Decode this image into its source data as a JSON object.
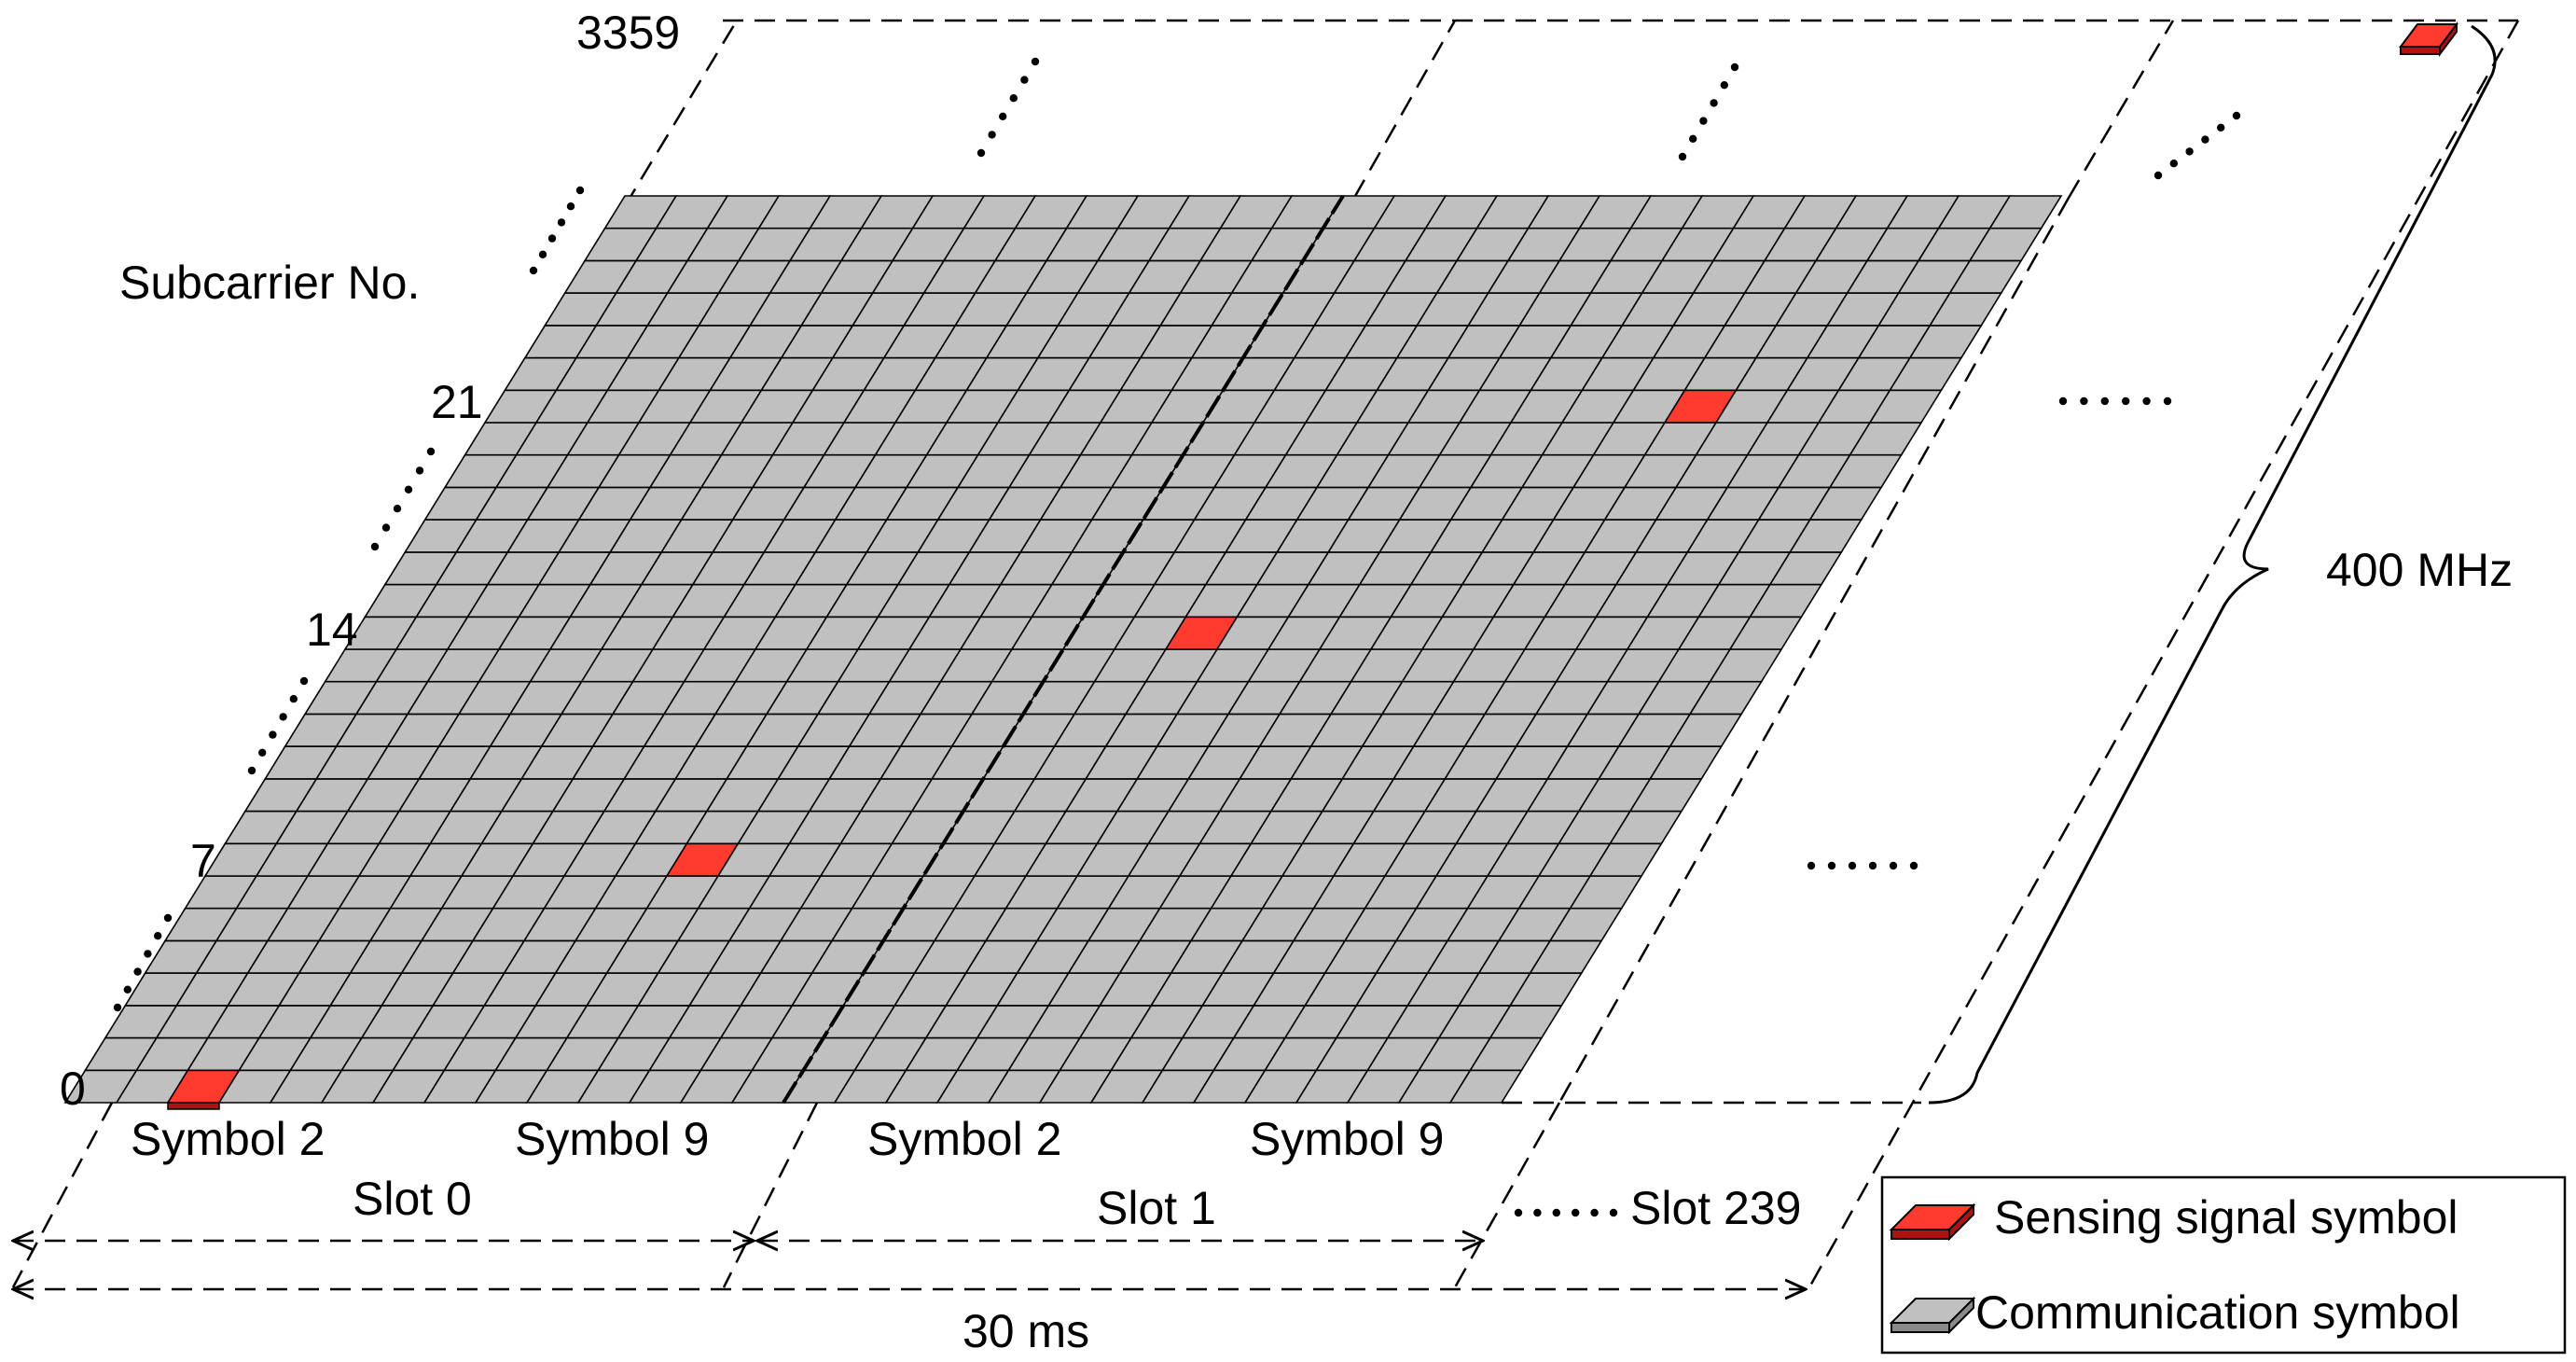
{
  "colors": {
    "sensing": "#ff3b30",
    "communication": "#c0c0c0",
    "grid_line": "#000000",
    "background": "#ffffff"
  },
  "grid": {
    "symbols_per_slot": 14,
    "slots_shown": 2,
    "subcarrier_rows_shown": 28
  },
  "sensing_cells": [
    {
      "slot": 0,
      "symbol": 2,
      "subcarrier": 0
    },
    {
      "slot": 0,
      "symbol": 9,
      "subcarrier": 7
    },
    {
      "slot": 1,
      "symbol": 2,
      "subcarrier": 14
    },
    {
      "slot": 1,
      "symbol": 9,
      "subcarrier": 21
    }
  ],
  "labels": {
    "axis_title": "Subcarrier No.",
    "subcarrier_ticks": [
      "0",
      "7",
      "14",
      "21",
      "3359"
    ],
    "slot0_symbol_a": "Symbol 2",
    "slot0_symbol_b": "Symbol 9",
    "slot1_symbol_a": "Symbol 2",
    "slot1_symbol_b": "Symbol 9",
    "slot0": "Slot 0",
    "slot1": "Slot 1",
    "slot_last": "Slot 239",
    "frame_duration": "30 ms",
    "bandwidth": "400 MHz",
    "ellipsis": "......"
  },
  "legend": {
    "sensing_label": "Sensing signal symbol",
    "communication_label": "Communication symbol"
  }
}
